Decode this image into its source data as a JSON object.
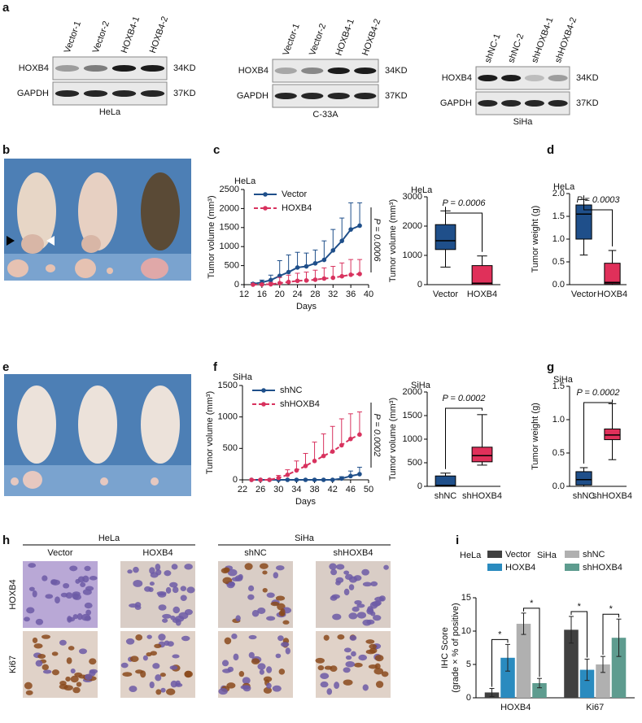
{
  "panel_labels": [
    "a",
    "b",
    "c",
    "d",
    "e",
    "f",
    "g",
    "h",
    "i"
  ],
  "blots": [
    {
      "samples": [
        "Vector-1",
        "Vector-2",
        "HOXB4-1",
        "HOXB4-2"
      ],
      "rows": [
        "HOXB4",
        "GAPDH"
      ],
      "sizes": [
        "34KD",
        "37KD"
      ],
      "cell_line": "HeLa"
    },
    {
      "samples": [
        "Vector-1",
        "Vector-2",
        "HOXB4-1",
        "HOXB4-2"
      ],
      "rows": [
        "HOXB4",
        "GAPDH"
      ],
      "sizes": [
        "34KD",
        "37KD"
      ],
      "cell_line": "C-33A"
    },
    {
      "samples": [
        "shNC-1",
        "shNC-2",
        "shHOXB4-1",
        "shHOXB4-2"
      ],
      "rows": [
        "HOXB4",
        "GAPDH"
      ],
      "sizes": [
        "34KD",
        "37KD"
      ],
      "cell_line": "SiHa"
    }
  ],
  "ihc": {
    "groups": [
      "HeLa",
      "SiHa"
    ],
    "columns": [
      "Vector",
      "HOXB4",
      "shNC",
      "shHOXB4"
    ],
    "rows": [
      "HOXB4",
      "Ki67"
    ]
  },
  "chart_data": [
    {
      "type": "line",
      "title": "HeLa",
      "xlabel": "Days",
      "ylabel": "Tumor volume (mm³)",
      "x": [
        14,
        16,
        18,
        20,
        22,
        24,
        26,
        28,
        30,
        32,
        34,
        36,
        38
      ],
      "xlim": [
        12,
        40
      ],
      "xticks": [
        12,
        16,
        20,
        24,
        28,
        32,
        36,
        40
      ],
      "ylim": [
        0,
        2500
      ],
      "yticks": [
        0,
        500,
        1000,
        1500,
        2000,
        2500
      ],
      "annotation": "P = 0.0006",
      "series": [
        {
          "name": "Vector",
          "color": "#1f4f8a",
          "line_style": "solid",
          "values": [
            20,
            60,
            120,
            230,
            330,
            450,
            480,
            560,
            650,
            900,
            1150,
            1450,
            1550
          ],
          "errors": [
            30,
            60,
            130,
            400,
            450,
            400,
            350,
            350,
            500,
            550,
            600,
            700,
            600
          ]
        },
        {
          "name": "HOXB4",
          "color": "#d8325e",
          "line_style": "dashed",
          "values": [
            0,
            5,
            10,
            40,
            70,
            100,
            110,
            130,
            160,
            180,
            220,
            260,
            280
          ],
          "errors": [
            5,
            20,
            50,
            150,
            180,
            200,
            220,
            250,
            280,
            300,
            350,
            400,
            380
          ]
        }
      ]
    },
    {
      "type": "box",
      "title": "HeLa",
      "ylabel": "Tumor volume (mm³)",
      "ylim": [
        0,
        3000
      ],
      "yticks": [
        0,
        1000,
        2000,
        3000
      ],
      "annotation": "P = 0.0006",
      "boxes": [
        {
          "name": "Vector",
          "color": "#1f4f8a",
          "min": 600,
          "q1": 1200,
          "median": 1500,
          "q3": 2050,
          "max": 2520
        },
        {
          "name": "HOXB4",
          "color": "#e0305a",
          "min": 0,
          "q1": 0,
          "median": 50,
          "q3": 650,
          "max": 980
        }
      ]
    },
    {
      "type": "box",
      "title": "HeLa",
      "ylabel": "Tumor weight (g)",
      "ylim": [
        0,
        2
      ],
      "yticks": [
        {
          "value": 0,
          "label": "0.0"
        },
        0.5,
        {
          "value": 1,
          "label": "1.0"
        },
        1.5,
        {
          "value": 2,
          "label": "2.0"
        }
      ],
      "annotation": "P = 0.0003",
      "boxes": [
        {
          "name": "Vector",
          "color": "#1f4f8a",
          "min": 0.65,
          "q1": 1.0,
          "median": 1.55,
          "q3": 1.75,
          "max": 1.87
        },
        {
          "name": "HOXB4",
          "color": "#e0305a",
          "min": 0,
          "q1": 0.02,
          "median": 0.05,
          "q3": 0.47,
          "max": 0.75
        }
      ]
    },
    {
      "type": "line",
      "title": "SiHa",
      "xlabel": "Days",
      "ylabel": "Tumor volume (mm³)",
      "x": [
        24,
        26,
        28,
        30,
        32,
        34,
        36,
        38,
        40,
        42,
        44,
        46,
        48
      ],
      "xlim": [
        22,
        50
      ],
      "xticks": [
        22,
        26,
        30,
        34,
        38,
        42,
        46,
        50
      ],
      "ylim": [
        0,
        1500
      ],
      "yticks": [
        0,
        500,
        1000,
        1500
      ],
      "annotation": "P = 0.0002",
      "series": [
        {
          "name": "shNC",
          "color": "#1f4f8a",
          "line_style": "solid",
          "values": [
            0,
            0,
            0,
            0,
            0,
            0,
            0,
            0,
            0,
            0,
            20,
            60,
            90
          ],
          "errors": [
            0,
            0,
            0,
            0,
            0,
            0,
            0,
            0,
            0,
            0,
            30,
            80,
            110
          ]
        },
        {
          "name": "shHOXB4",
          "color": "#d8325e",
          "line_style": "dashed",
          "values": [
            0,
            0,
            0,
            30,
            80,
            150,
            220,
            300,
            380,
            450,
            550,
            650,
            720
          ],
          "errors": [
            0,
            0,
            0,
            40,
            80,
            150,
            200,
            300,
            350,
            400,
            420,
            400,
            360
          ]
        }
      ]
    },
    {
      "type": "box",
      "title": "SiHa",
      "ylabel": "Tumor volume (mm³)",
      "ylim": [
        0,
        2000
      ],
      "yticks": [
        0,
        500,
        1000,
        1500,
        2000
      ],
      "annotation": "P = 0.0002",
      "boxes": [
        {
          "name": "shNC",
          "color": "#1f4f8a",
          "min": 0,
          "q1": 0,
          "median": 20,
          "q3": 220,
          "max": 280
        },
        {
          "name": "shHOXB4",
          "color": "#e0305a",
          "min": 450,
          "q1": 520,
          "median": 650,
          "q3": 830,
          "max": 1520
        }
      ]
    },
    {
      "type": "box",
      "title": "SiHa",
      "ylabel": "Tumor weight (g)",
      "ylim": [
        0,
        1.5
      ],
      "yticks": [
        {
          "value": 0,
          "label": "0.0"
        },
        0.5,
        {
          "value": 1,
          "label": "1.0"
        },
        1.5
      ],
      "annotation": "P = 0.0002",
      "boxes": [
        {
          "name": "shNC",
          "color": "#1f4f8a",
          "min": 0,
          "q1": 0.02,
          "median": 0.1,
          "q3": 0.22,
          "max": 0.28
        },
        {
          "name": "shHOXB4",
          "color": "#e0305a",
          "min": 0.4,
          "q1": 0.7,
          "median": 0.77,
          "q3": 0.86,
          "max": 1.24
        }
      ]
    },
    {
      "type": "bar",
      "ylabel": [
        "IHC Score",
        "(grade × % of positive)"
      ],
      "categories": [
        "HOXB4",
        "Ki67"
      ],
      "ylim": [
        0,
        15
      ],
      "yticks": [
        0,
        5,
        10,
        15
      ],
      "legend_titles": [
        "HeLa",
        "SiHa"
      ],
      "annotations": [
        "*",
        "*",
        "*",
        "*"
      ],
      "series": [
        {
          "name": "Vector",
          "color": "#404040",
          "values": [
            0.8,
            10.2
          ],
          "errors": [
            0.6,
            2.0
          ]
        },
        {
          "name": "HOXB4",
          "color": "#2a8bbf",
          "values": [
            6.0,
            4.2
          ],
          "errors": [
            2.0,
            1.6
          ]
        },
        {
          "name": "shNC",
          "color": "#b0b0b0",
          "values": [
            11.1,
            5.0
          ],
          "errors": [
            1.6,
            1.2
          ]
        },
        {
          "name": "shHOXB4",
          "color": "#5e9c8f",
          "values": [
            2.2,
            9.0
          ],
          "errors": [
            0.7,
            2.8
          ]
        }
      ]
    }
  ]
}
